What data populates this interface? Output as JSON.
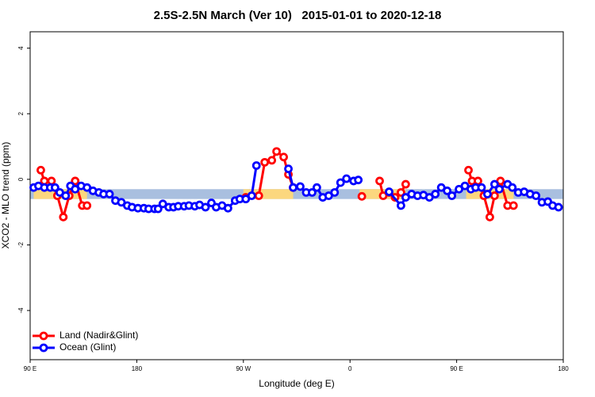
{
  "chart_data": {
    "type": "line",
    "title": "2.5S-2.5N March (Ver 10)   2015-01-01 to 2020-12-18",
    "xlabel": "Longitude (deg E)",
    "ylabel": "XCO2 - MLO trend (ppm)",
    "xlim": [
      90,
      540
    ],
    "ylim": [
      -5.5,
      4.5
    ],
    "xticks": [
      {
        "value": 90,
        "label": "90 E"
      },
      {
        "value": 180,
        "label": "180"
      },
      {
        "value": 270,
        "label": "90 W"
      },
      {
        "value": 360,
        "label": "0"
      },
      {
        "value": 450,
        "label": "90 E"
      },
      {
        "value": 540,
        "label": "180"
      }
    ],
    "yticks": [
      -4,
      -2,
      0,
      2,
      4
    ],
    "band_ylim": [
      -0.6,
      -0.3
    ],
    "band_color": "#a9bfdf",
    "land_band_color": "#fbd77e",
    "land_bands": [
      [
        93,
        138
      ],
      [
        270,
        312
      ],
      [
        368,
        407
      ],
      [
        458,
        498
      ]
    ],
    "legend": "bottom-left",
    "series": [
      {
        "name": "Land (Nadir&Glint)",
        "color": "#ff0000",
        "x": [
          99,
          102,
          108,
          113,
          118,
          123,
          128,
          134,
          138,
          null,
          272,
          283,
          288,
          294,
          298,
          304,
          308,
          312,
          null,
          370,
          null,
          385,
          388,
          393,
          398,
          403,
          407,
          null,
          460,
          463,
          468,
          473,
          478,
          482,
          487,
          493,
          498
        ],
        "values": [
          0.28,
          -0.05,
          -0.05,
          -0.5,
          -1.15,
          -0.5,
          -0.05,
          -0.8,
          -0.8,
          null,
          -0.55,
          -0.5,
          0.52,
          0.58,
          0.85,
          0.68,
          0.15,
          -0.25,
          null,
          -0.52,
          null,
          -0.05,
          -0.5,
          -0.4,
          -0.55,
          -0.4,
          -0.15,
          null,
          0.28,
          -0.05,
          -0.05,
          -0.5,
          -1.15,
          -0.5,
          -0.05,
          -0.8,
          -0.8
        ]
      },
      {
        "name": "Ocean (Glint)",
        "color": "#0000ff",
        "x": [
          93,
          97,
          102,
          107,
          111,
          115,
          120,
          124,
          128,
          133,
          138,
          143,
          148,
          152,
          157,
          162,
          167,
          172,
          176,
          181,
          186,
          190,
          195,
          198,
          202,
          207,
          211,
          215,
          220,
          224,
          229,
          233,
          238,
          243,
          247,
          252,
          257,
          263,
          267,
          272,
          277,
          281,
          null,
          308,
          312,
          318,
          323,
          328,
          332,
          337,
          342,
          347,
          352,
          357,
          363,
          367,
          null,
          393,
          403,
          407,
          412,
          417,
          422,
          427,
          432,
          437,
          442,
          446,
          452,
          457,
          462,
          466,
          471,
          476,
          482,
          486,
          493,
          497,
          502,
          507,
          512,
          517,
          522,
          527,
          531,
          536
        ],
        "values": [
          -0.25,
          -0.2,
          -0.25,
          -0.25,
          -0.25,
          -0.4,
          -0.5,
          -0.2,
          -0.3,
          -0.2,
          -0.25,
          -0.35,
          -0.4,
          -0.45,
          -0.45,
          -0.65,
          -0.7,
          -0.8,
          -0.85,
          -0.88,
          -0.88,
          -0.9,
          -0.9,
          -0.9,
          -0.75,
          -0.85,
          -0.85,
          -0.82,
          -0.82,
          -0.8,
          -0.82,
          -0.78,
          -0.85,
          -0.72,
          -0.85,
          -0.8,
          -0.88,
          -0.65,
          -0.6,
          -0.6,
          -0.5,
          0.42,
          null,
          0.32,
          -0.25,
          -0.22,
          -0.4,
          -0.4,
          -0.25,
          -0.55,
          -0.5,
          -0.4,
          -0.1,
          0.02,
          -0.05,
          -0.02,
          null,
          -0.38,
          -0.8,
          -0.55,
          -0.45,
          -0.5,
          -0.48,
          -0.55,
          -0.45,
          -0.25,
          -0.35,
          -0.5,
          -0.3,
          -0.2,
          -0.3,
          -0.25,
          -0.25,
          -0.45,
          -0.15,
          -0.3,
          -0.15,
          -0.25,
          -0.4,
          -0.38,
          -0.45,
          -0.5,
          -0.7,
          -0.68,
          -0.8,
          -0.85
        ]
      }
    ]
  }
}
